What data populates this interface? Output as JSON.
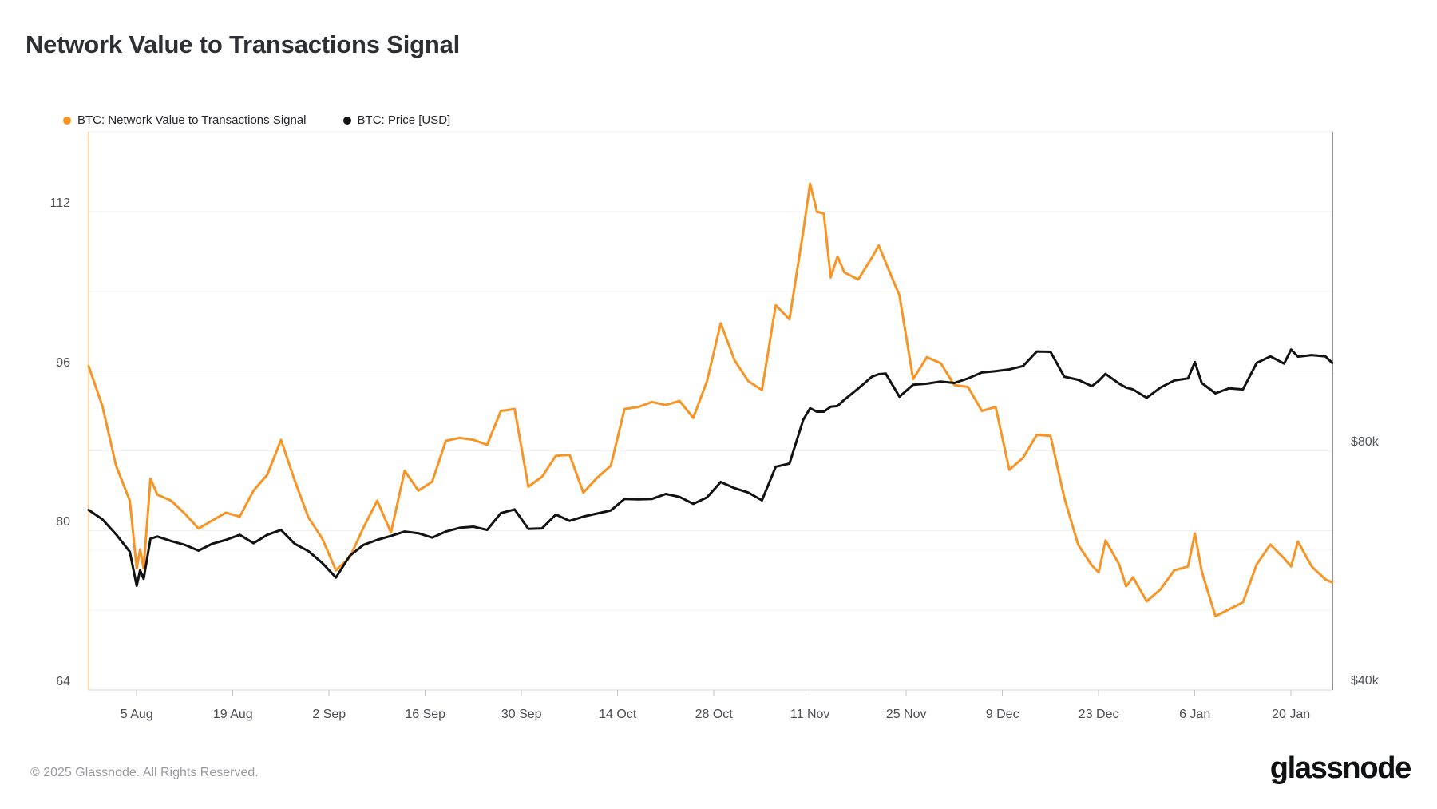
{
  "page": {
    "title": "Network Value to Transactions Signal"
  },
  "legend": {
    "items": [
      {
        "label": "BTC: Network Value to Transactions Signal",
        "color": "#F79423"
      },
      {
        "label": "BTC: Price [USD]",
        "color": "#121212"
      }
    ]
  },
  "footer": {
    "copyright": "© 2025 Glassnode. All Rights Reserved.",
    "logo_text": "glassnode"
  },
  "chart_data": {
    "type": "line",
    "title": "Network Value to Transactions Signal",
    "grid": "horizontal-only",
    "legend_position": "top-left",
    "start_date": "2024-07-29",
    "end_date": "2025-01-26",
    "x_unit": "days_since_start",
    "x": [
      0,
      2,
      4,
      6,
      7,
      7.5,
      8,
      9,
      10,
      12,
      14,
      16,
      18,
      20,
      22,
      24,
      26,
      28,
      30,
      32,
      34,
      36,
      38,
      40,
      42,
      44,
      46,
      48,
      50,
      52,
      54,
      56,
      58,
      60,
      62,
      64,
      66,
      68,
      70,
      72,
      74,
      76,
      78,
      80,
      82,
      84,
      86,
      88,
      90,
      92,
      94,
      96,
      98,
      100,
      102,
      104,
      105,
      106,
      107,
      108,
      109,
      110,
      112,
      114,
      115,
      116,
      118,
      120,
      122,
      124,
      126,
      128,
      130,
      132,
      134,
      136,
      138,
      140,
      142,
      144,
      146,
      147,
      148,
      150,
      151,
      152,
      154,
      156,
      158,
      160,
      161,
      162,
      164,
      166,
      168,
      170,
      172,
      174,
      175,
      176,
      178,
      180,
      181
    ],
    "x_ticks": [
      {
        "label": "5 Aug",
        "day": 7
      },
      {
        "label": "19 Aug",
        "day": 21
      },
      {
        "label": "2 Sep",
        "day": 35
      },
      {
        "label": "16 Sep",
        "day": 49
      },
      {
        "label": "30 Sep",
        "day": 63
      },
      {
        "label": "14 Oct",
        "day": 77
      },
      {
        "label": "28 Oct",
        "day": 91
      },
      {
        "label": "11 Nov",
        "day": 105
      },
      {
        "label": "25 Nov",
        "day": 119
      },
      {
        "label": "9 Dec",
        "day": 133
      },
      {
        "label": "23 Dec",
        "day": 147
      },
      {
        "label": "6 Jan",
        "day": 161
      },
      {
        "label": "20 Jan",
        "day": 175
      }
    ],
    "left_axis": {
      "label_ticks": [
        112,
        96,
        80,
        64
      ],
      "gridlines": [
        112,
        104,
        96,
        88,
        80,
        72
      ],
      "top_value": 120,
      "bottom_value": 64
    },
    "right_axis": {
      "scale": "log",
      "label_ticks": [
        {
          "label": "$80k",
          "value": 80
        },
        {
          "label": "$40k",
          "value": 40
        }
      ],
      "extra_gridlines": [
        60
      ],
      "unit": "USD thousands"
    },
    "series": [
      {
        "name": "BTC: Network Value to Transactions Signal",
        "axis": "left",
        "color": "#F79423",
        "values": [
          96.5,
          92.5,
          86.5,
          83.0,
          76.2,
          78.1,
          76.2,
          85.2,
          83.6,
          83.0,
          81.7,
          80.2,
          81.0,
          81.8,
          81.4,
          84.0,
          85.6,
          89.1,
          85.0,
          81.3,
          79.2,
          76.0,
          77.3,
          80.3,
          83.0,
          79.8,
          86.0,
          84.0,
          84.9,
          89.0,
          89.3,
          89.1,
          88.6,
          92.0,
          92.2,
          84.4,
          85.4,
          87.5,
          87.6,
          83.8,
          85.3,
          86.5,
          92.2,
          92.4,
          92.9,
          92.6,
          93.0,
          91.3,
          95.0,
          100.8,
          97.1,
          95.0,
          94.1,
          102.6,
          101.2,
          110.0,
          114.8,
          112.0,
          111.8,
          105.4,
          107.5,
          105.9,
          105.2,
          107.4,
          108.6,
          106.9,
          103.6,
          95.2,
          97.4,
          96.8,
          94.6,
          94.4,
          92.0,
          92.4,
          86.1,
          87.3,
          89.6,
          89.5,
          83.3,
          78.6,
          76.5,
          75.8,
          79.0,
          76.6,
          74.4,
          75.3,
          72.9,
          74.1,
          76.0,
          76.4,
          79.7,
          75.9,
          71.4,
          72.1,
          72.8,
          76.6,
          78.6,
          77.2,
          76.4,
          78.9,
          76.4,
          75.1,
          74.8
        ]
      },
      {
        "name": "BTC: Price [USD]",
        "axis": "right",
        "color": "#121212",
        "unit": "USD_thousands",
        "values": [
          67.4,
          65.6,
          62.8,
          59.7,
          54.1,
          56.6,
          55.2,
          62.0,
          62.4,
          61.6,
          60.9,
          59.9,
          61.1,
          61.8,
          62.7,
          61.2,
          62.7,
          63.6,
          61.1,
          59.8,
          57.8,
          55.4,
          59.0,
          60.9,
          61.8,
          62.5,
          63.3,
          63.0,
          62.2,
          63.3,
          64.0,
          64.2,
          63.6,
          66.8,
          67.5,
          63.8,
          63.9,
          66.5,
          65.3,
          66.1,
          66.7,
          67.3,
          69.6,
          69.5,
          69.6,
          70.6,
          70.0,
          68.6,
          69.9,
          73.1,
          71.8,
          70.9,
          69.3,
          76.4,
          77.1,
          87.5,
          90.5,
          89.6,
          89.6,
          90.9,
          91.1,
          92.8,
          95.8,
          99.2,
          99.9,
          100.1,
          93.6,
          96.9,
          97.2,
          97.8,
          97.4,
          98.7,
          100.4,
          100.8,
          101.3,
          102.3,
          106.7,
          106.6,
          99.2,
          98.3,
          96.5,
          98.0,
          100.0,
          97.2,
          96.1,
          95.6,
          93.3,
          96.1,
          98.1,
          98.7,
          103.5,
          97.4,
          94.5,
          95.9,
          95.6,
          103.2,
          105.2,
          103.0,
          107.3,
          105.1,
          105.6,
          105.2,
          103.2
        ]
      }
    ],
    "style_colors": {
      "gridline": "#f1f1f1",
      "extra_gridline": "#f4f4f4",
      "top_border": "#ececec",
      "right_border": "#8f9296",
      "bottom_axis": "#d8d8d8",
      "tick_mark": "#c6c6c6",
      "left_spine": "#f8b068"
    }
  }
}
